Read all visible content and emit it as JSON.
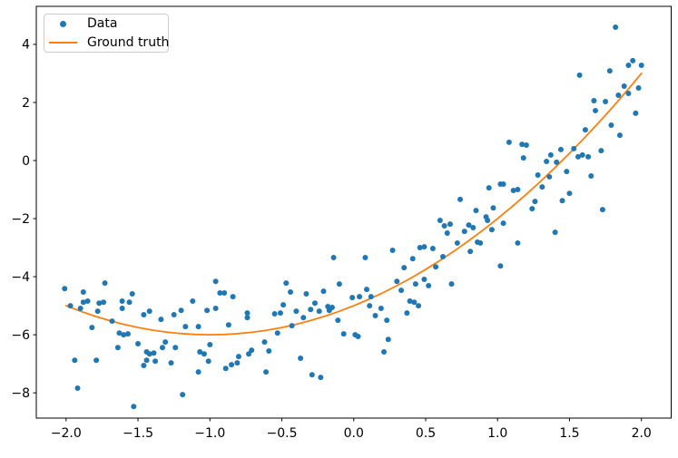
{
  "chart_data": {
    "type": "scatter",
    "title": "",
    "xlabel": "",
    "ylabel": "",
    "grid": false,
    "legend_position": "upper left",
    "xlim": [
      -2.207,
      2.207
    ],
    "ylim": [
      -8.87,
      5.31
    ],
    "x_ticks": [
      -2.0,
      -1.5,
      -1.0,
      -0.5,
      0.0,
      0.5,
      1.0,
      1.5,
      2.0
    ],
    "x_tick_labels": [
      "−2.0",
      "−1.5",
      "−1.0",
      "−0.5",
      "0.0",
      "0.5",
      "1.0",
      "1.5",
      "2.0"
    ],
    "y_ticks": [
      4,
      2,
      0,
      -2,
      -4,
      -6,
      -8
    ],
    "y_tick_labels": [
      "4",
      "2",
      "0",
      "−2",
      "−4",
      "−6",
      "−8"
    ],
    "colors": {
      "scatter": "#1f77b4",
      "line": "#ff7f0e",
      "spine": "#000000"
    },
    "series": [
      {
        "name": "Data",
        "type": "scatter",
        "color": "#1f77b4",
        "points": [
          [
            -2.01,
            -4.41
          ],
          [
            -1.88,
            -4.53
          ],
          [
            -1.88,
            -4.88
          ],
          [
            -1.85,
            -4.84
          ],
          [
            -1.97,
            -5.0
          ],
          [
            -1.9,
            -5.09
          ],
          [
            -1.82,
            -5.75
          ],
          [
            -1.78,
            -5.19
          ],
          [
            -1.77,
            -4.91
          ],
          [
            -1.73,
            -4.22
          ],
          [
            -1.74,
            -4.88
          ],
          [
            -1.79,
            -6.88
          ],
          [
            -1.94,
            -6.88
          ],
          [
            -1.92,
            -7.84
          ],
          [
            -1.68,
            -5.53
          ],
          [
            -1.61,
            -5.09
          ],
          [
            -1.63,
            -5.94
          ],
          [
            -1.6,
            -6.0
          ],
          [
            -1.61,
            -4.84
          ],
          [
            -1.56,
            -4.88
          ],
          [
            -1.54,
            -4.59
          ],
          [
            -1.57,
            -5.97
          ],
          [
            -1.5,
            -6.31
          ],
          [
            -1.64,
            -6.44
          ],
          [
            -1.46,
            -5.31
          ],
          [
            -1.42,
            -5.19
          ],
          [
            -1.44,
            -6.59
          ],
          [
            -1.42,
            -6.66
          ],
          [
            -1.39,
            -6.63
          ],
          [
            -1.44,
            -6.88
          ],
          [
            -1.38,
            -6.91
          ],
          [
            -1.33,
            -6.44
          ],
          [
            -1.31,
            -6.25
          ],
          [
            -1.34,
            -5.47
          ],
          [
            -1.25,
            -5.31
          ],
          [
            -1.2,
            -5.16
          ],
          [
            -1.24,
            -6.44
          ],
          [
            -1.27,
            -6.97
          ],
          [
            -1.46,
            -7.06
          ],
          [
            -1.53,
            -8.47
          ],
          [
            -1.17,
            -5.72
          ],
          [
            -1.12,
            -4.84
          ],
          [
            -1.08,
            -5.72
          ],
          [
            -1.07,
            -6.59
          ],
          [
            -1.04,
            -6.66
          ],
          [
            -1.02,
            -5.16
          ],
          [
            -0.96,
            -4.16
          ],
          [
            -0.96,
            -5.09
          ],
          [
            -0.93,
            -4.56
          ],
          [
            -0.9,
            -4.56
          ],
          [
            -0.84,
            -4.69
          ],
          [
            -0.87,
            -5.66
          ],
          [
            -0.85,
            -7.03
          ],
          [
            -0.89,
            -7.16
          ],
          [
            -1.01,
            -6.91
          ],
          [
            -1.0,
            -6.34
          ],
          [
            -1.08,
            -7.28
          ],
          [
            -1.19,
            -8.06
          ],
          [
            -0.74,
            -5.25
          ],
          [
            -0.74,
            -5.41
          ],
          [
            -0.71,
            -6.53
          ],
          [
            -0.73,
            -6.66
          ],
          [
            -0.8,
            -6.75
          ],
          [
            -0.81,
            -6.97
          ],
          [
            -0.14,
            -3.34
          ],
          [
            0.08,
            -3.34
          ],
          [
            0.41,
            -3.38
          ],
          [
            0.35,
            -3.69
          ],
          [
            0.62,
            -3.31
          ],
          [
            -0.47,
            -4.22
          ],
          [
            -0.44,
            -4.53
          ],
          [
            -0.1,
            -4.25
          ],
          [
            -0.21,
            -4.5
          ],
          [
            -0.33,
            -4.59
          ],
          [
            -0.49,
            -4.97
          ],
          [
            -0.55,
            -5.28
          ],
          [
            -0.51,
            -5.25
          ],
          [
            -0.4,
            -5.19
          ],
          [
            -0.35,
            -5.41
          ],
          [
            -0.3,
            -5.13
          ],
          [
            -0.27,
            -4.91
          ],
          [
            -0.24,
            -5.19
          ],
          [
            -0.18,
            -5.03
          ],
          [
            -0.17,
            -5.16
          ],
          [
            -0.15,
            -5.06
          ],
          [
            -0.11,
            -5.5
          ],
          [
            -0.07,
            -5.97
          ],
          [
            -0.43,
            -5.69
          ],
          [
            -0.53,
            -5.94
          ],
          [
            -0.62,
            -6.25
          ],
          [
            -0.59,
            -6.56
          ],
          [
            -0.61,
            -7.28
          ],
          [
            -0.37,
            -6.81
          ],
          [
            -0.29,
            -7.38
          ],
          [
            -0.23,
            -7.47
          ],
          [
            -0.01,
            -4.72
          ],
          [
            0.04,
            -4.69
          ],
          [
            0.09,
            -4.44
          ],
          [
            0.12,
            -4.69
          ],
          [
            0.11,
            -5.0
          ],
          [
            0.15,
            -5.34
          ],
          [
            0.19,
            -5.09
          ],
          [
            0.01,
            -6.0
          ],
          [
            0.03,
            -6.06
          ],
          [
            0.23,
            -5.5
          ],
          [
            0.24,
            -6.16
          ],
          [
            0.21,
            -6.59
          ],
          [
            0.3,
            -4.16
          ],
          [
            0.33,
            -4.47
          ],
          [
            0.37,
            -5.25
          ],
          [
            0.43,
            -4.25
          ],
          [
            0.49,
            -4.09
          ],
          [
            0.52,
            -4.31
          ],
          [
            0.57,
            -3.66
          ],
          [
            0.39,
            -4.84
          ],
          [
            0.42,
            -4.88
          ],
          [
            0.45,
            -5.0
          ],
          [
            0.68,
            -4.25
          ],
          [
            1.02,
            -3.63
          ],
          [
            1.08,
            0.63
          ],
          [
            0.74,
            -1.34
          ],
          [
            0.85,
            -1.72
          ],
          [
            0.94,
            -0.94
          ],
          [
            1.02,
            -0.81
          ],
          [
            1.04,
            -0.81
          ],
          [
            1.11,
            -1.03
          ],
          [
            0.97,
            -1.63
          ],
          [
            0.92,
            -1.94
          ],
          [
            0.93,
            -2.06
          ],
          [
            0.6,
            -2.06
          ],
          [
            0.63,
            -2.25
          ],
          [
            0.67,
            -2.19
          ],
          [
            0.65,
            -2.5
          ],
          [
            0.8,
            -2.22
          ],
          [
            0.83,
            -2.31
          ],
          [
            0.77,
            -2.44
          ],
          [
            0.86,
            -2.81
          ],
          [
            0.88,
            -2.84
          ],
          [
            0.96,
            -2.38
          ],
          [
            1.04,
            -2.16
          ],
          [
            0.72,
            -2.84
          ],
          [
            0.46,
            -3.0
          ],
          [
            0.49,
            -2.97
          ],
          [
            0.55,
            -3.03
          ],
          [
            0.81,
            -3.13
          ],
          [
            0.27,
            -3.09
          ],
          [
            1.17,
            0.56
          ],
          [
            1.2,
            0.53
          ],
          [
            1.18,
            0.09
          ],
          [
            1.34,
            -0.03
          ],
          [
            1.37,
            0.19
          ],
          [
            1.41,
            -0.06
          ],
          [
            1.44,
            0.38
          ],
          [
            1.53,
            0.41
          ],
          [
            1.56,
            0.13
          ],
          [
            1.59,
            0.19
          ],
          [
            1.63,
            0.13
          ],
          [
            1.72,
            0.34
          ],
          [
            1.85,
            0.87
          ],
          [
            1.48,
            -0.38
          ],
          [
            1.28,
            -0.5
          ],
          [
            1.36,
            -0.56
          ],
          [
            1.31,
            -0.91
          ],
          [
            1.14,
            -1.0
          ],
          [
            1.26,
            -1.41
          ],
          [
            1.24,
            -1.66
          ],
          [
            1.45,
            -1.38
          ],
          [
            1.5,
            -1.13
          ],
          [
            1.65,
            -0.53
          ],
          [
            1.73,
            -1.69
          ],
          [
            1.4,
            -2.47
          ],
          [
            1.14,
            -2.84
          ],
          [
            1.82,
            4.59
          ],
          [
            1.94,
            3.44
          ],
          [
            1.91,
            3.28
          ],
          [
            2.0,
            3.28
          ],
          [
            1.57,
            2.94
          ],
          [
            1.78,
            3.09
          ],
          [
            1.88,
            2.56
          ],
          [
            1.98,
            2.5
          ],
          [
            1.91,
            2.31
          ],
          [
            1.84,
            2.25
          ],
          [
            1.67,
            2.06
          ],
          [
            1.75,
            2.03
          ],
          [
            1.68,
            1.72
          ],
          [
            1.96,
            1.63
          ],
          [
            1.79,
            1.22
          ],
          [
            1.61,
            1.06
          ]
        ]
      },
      {
        "name": "Ground truth",
        "type": "line",
        "color": "#ff7f0e",
        "expression": "y = x^2 + 2x - 5",
        "points": [
          [
            -2.0,
            -5.0
          ],
          [
            -1.9,
            -5.19
          ],
          [
            -1.8,
            -5.36
          ],
          [
            -1.7,
            -5.51
          ],
          [
            -1.6,
            -5.64
          ],
          [
            -1.5,
            -5.75
          ],
          [
            -1.4,
            -5.84
          ],
          [
            -1.3,
            -5.91
          ],
          [
            -1.2,
            -5.96
          ],
          [
            -1.1,
            -5.99
          ],
          [
            -1.0,
            -6.0
          ],
          [
            -0.9,
            -5.99
          ],
          [
            -0.8,
            -5.96
          ],
          [
            -0.7,
            -5.91
          ],
          [
            -0.6,
            -5.84
          ],
          [
            -0.5,
            -5.75
          ],
          [
            -0.4,
            -5.64
          ],
          [
            -0.3,
            -5.51
          ],
          [
            -0.2,
            -5.36
          ],
          [
            -0.1,
            -5.19
          ],
          [
            0.0,
            -5.0
          ],
          [
            0.1,
            -4.79
          ],
          [
            0.2,
            -4.56
          ],
          [
            0.3,
            -4.31
          ],
          [
            0.4,
            -4.04
          ],
          [
            0.5,
            -3.75
          ],
          [
            0.6,
            -3.44
          ],
          [
            0.7,
            -3.11
          ],
          [
            0.8,
            -2.76
          ],
          [
            0.9,
            -2.39
          ],
          [
            1.0,
            -2.0
          ],
          [
            1.1,
            -1.59
          ],
          [
            1.2,
            -1.16
          ],
          [
            1.3,
            -0.71
          ],
          [
            1.4,
            -0.24
          ],
          [
            1.5,
            0.25
          ],
          [
            1.6,
            0.76
          ],
          [
            1.7,
            1.29
          ],
          [
            1.8,
            1.84
          ],
          [
            1.9,
            2.41
          ],
          [
            2.0,
            3.0
          ]
        ]
      }
    ]
  }
}
